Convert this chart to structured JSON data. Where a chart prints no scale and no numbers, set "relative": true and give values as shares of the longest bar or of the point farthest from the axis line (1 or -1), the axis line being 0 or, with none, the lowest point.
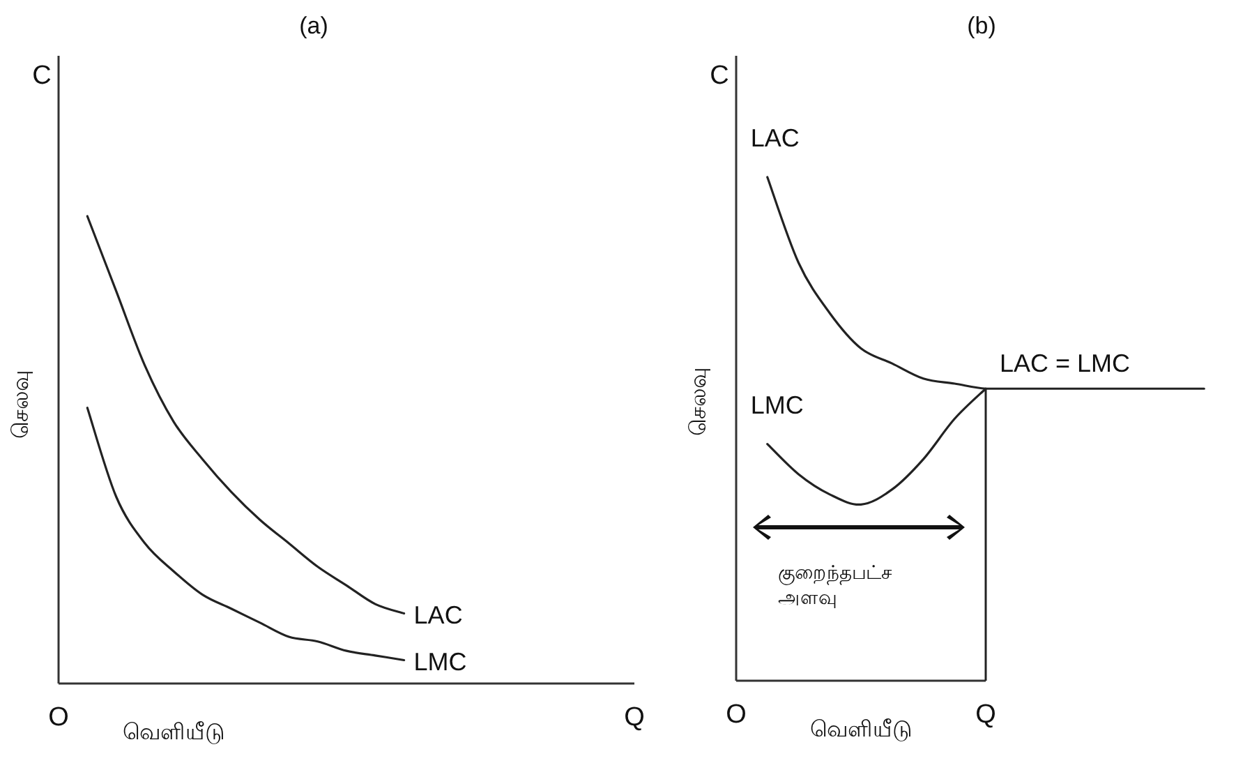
{
  "chart_data": [
    {
      "type": "line",
      "title": "(a)",
      "xlabel": "வெளியீடு",
      "ylabel": "செலவு",
      "relative": true,
      "categories": [
        "O",
        null,
        null,
        null,
        null,
        null,
        null,
        null,
        null,
        null,
        null,
        null,
        null,
        null,
        null,
        null,
        null,
        null,
        null,
        null,
        "Q"
      ],
      "series": [
        {
          "name": "LAC",
          "color": "#222222",
          "values": [
            null,
            1.0,
            0.84,
            0.68,
            0.56,
            0.48,
            0.41,
            0.35,
            0.3,
            0.25,
            0.21,
            0.17,
            0.15,
            null,
            null,
            null,
            null,
            null,
            null,
            null,
            null
          ]
        },
        {
          "name": "LMC",
          "color": "#222222",
          "values": [
            null,
            0.59,
            0.4,
            0.3,
            0.24,
            0.19,
            0.16,
            0.13,
            0.1,
            0.09,
            0.07,
            0.06,
            0.05,
            null,
            null,
            null,
            null,
            null,
            null,
            null,
            null
          ]
        }
      ],
      "annotations": [
        "C"
      ]
    },
    {
      "type": "line",
      "title": "(b)",
      "xlabel": "வெளியீடு",
      "ylabel": "செலவு",
      "relative": true,
      "categories": [
        "O",
        null,
        null,
        null,
        null,
        null,
        null,
        null,
        "Q",
        null,
        null,
        null,
        null,
        null,
        null,
        null
      ],
      "series": [
        {
          "name": "LAC",
          "color": "#222222",
          "values": [
            null,
            1.0,
            0.83,
            0.73,
            0.66,
            0.63,
            0.6,
            0.59,
            0.58,
            0.58,
            0.58,
            0.58,
            0.58,
            0.58,
            0.58,
            0.58
          ]
        },
        {
          "name": "LMC",
          "color": "#222222",
          "values": [
            null,
            0.47,
            0.41,
            0.37,
            0.35,
            0.38,
            0.44,
            0.52,
            0.58,
            null,
            null,
            null,
            null,
            null,
            null,
            null
          ]
        }
      ],
      "ref_lines": [
        {
          "axis": "x",
          "value": "Q",
          "color": "#222222"
        }
      ],
      "annotations": [
        "C",
        "குறைந்தபட்ச அளவு",
        {
          "text": "LAC = LMC",
          "x": "Q",
          "y": 0.58
        }
      ]
    }
  ]
}
